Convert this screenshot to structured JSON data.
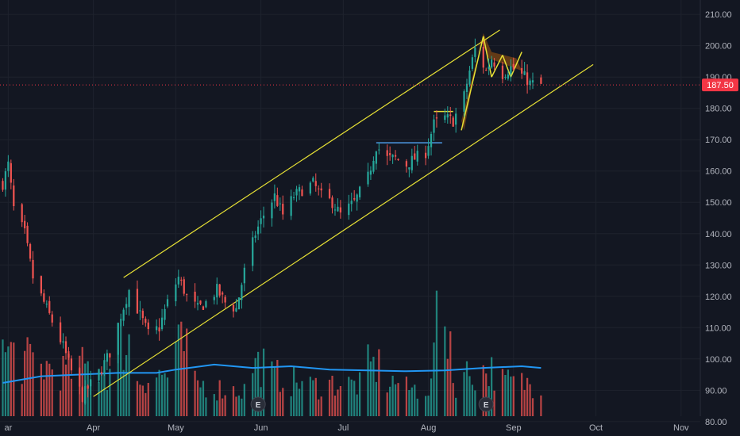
{
  "chart_data": {
    "type": "candlestick",
    "colors": {
      "background": "#131722",
      "up": "#26a69a",
      "down": "#ef5350",
      "volume_ma": "#2196f3",
      "channel": "#e6e035",
      "horizontal_line": "#4d9ae6",
      "pattern_fill": "#f57c00",
      "grid": "#1e222d",
      "price_line": "#f23645"
    },
    "y_ticks": [
      "210.00",
      "200.00",
      "190.00",
      "180.00",
      "170.00",
      "160.00",
      "150.00",
      "140.00",
      "130.00",
      "120.00",
      "110.00",
      "100.00",
      "90.00",
      "80.00"
    ],
    "y_tick_values": [
      210,
      200,
      190,
      180,
      170,
      160,
      150,
      140,
      130,
      120,
      110,
      100,
      90,
      80
    ],
    "ylim": [
      75.4,
      214.6
    ],
    "x_ticks": [
      "ar",
      "Apr",
      "May",
      "Jun",
      "Jul",
      "Aug",
      "Sep",
      "Oct",
      "Nov"
    ],
    "x_tick_dates": [
      "2023-03-01",
      "2023-04-01",
      "2023-05-01",
      "2023-06-01",
      "2023-07-01",
      "2023-08-01",
      "2023-09-01",
      "2023-10-01",
      "2023-11-01"
    ],
    "xlim": [
      "2023-02-26",
      "2023-11-08"
    ],
    "current_price": {
      "label": "187.50",
      "value": 187.5
    },
    "earnings_markers": [
      {
        "label": "E",
        "date": "2023-05-31"
      },
      {
        "label": "E",
        "date": "2023-08-22"
      }
    ],
    "candle_anchors": [
      [
        "2023-02-27",
        156
      ],
      [
        "2023-03-01",
        162
      ],
      [
        "2023-03-03",
        148
      ],
      [
        "2023-03-07",
        140
      ],
      [
        "2023-03-10",
        126
      ],
      [
        "2023-03-14",
        118
      ],
      [
        "2023-03-17",
        112
      ],
      [
        "2023-03-21",
        104
      ],
      [
        "2023-03-24",
        96
      ],
      [
        "2023-03-28",
        88
      ],
      [
        "2023-03-31",
        92
      ],
      [
        "2023-04-04",
        97
      ],
      [
        "2023-04-07",
        102
      ],
      [
        "2023-04-11",
        114
      ],
      [
        "2023-04-14",
        122
      ],
      [
        "2023-04-18",
        114
      ],
      [
        "2023-04-21",
        108
      ],
      [
        "2023-04-25",
        110
      ],
      [
        "2023-04-28",
        118
      ],
      [
        "2023-05-02",
        126
      ],
      [
        "2023-05-05",
        120
      ],
      [
        "2023-05-09",
        116
      ],
      [
        "2023-05-12",
        118
      ],
      [
        "2023-05-16",
        122
      ],
      [
        "2023-05-19",
        118
      ],
      [
        "2023-05-23",
        116
      ],
      [
        "2023-05-26",
        128
      ],
      [
        "2023-05-30",
        140
      ],
      [
        "2023-06-02",
        146
      ],
      [
        "2023-06-06",
        152
      ],
      [
        "2023-06-09",
        146
      ],
      [
        "2023-06-13",
        152
      ],
      [
        "2023-06-16",
        154
      ],
      [
        "2023-06-20",
        156
      ],
      [
        "2023-06-23",
        152
      ],
      [
        "2023-06-27",
        150
      ],
      [
        "2023-06-30",
        146
      ],
      [
        "2023-07-05",
        150
      ],
      [
        "2023-07-10",
        158
      ],
      [
        "2023-07-13",
        168
      ],
      [
        "2023-07-17",
        164
      ],
      [
        "2023-07-20",
        164
      ],
      [
        "2023-07-24",
        162
      ],
      [
        "2023-07-27",
        164
      ],
      [
        "2023-07-31",
        166
      ],
      [
        "2023-08-03",
        175
      ],
      [
        "2023-08-07",
        177
      ],
      [
        "2023-08-10",
        176
      ],
      [
        "2023-08-14",
        184
      ],
      [
        "2023-08-16",
        192
      ],
      [
        "2023-08-18",
        199
      ],
      [
        "2023-08-22",
        192
      ],
      [
        "2023-08-24",
        196
      ],
      [
        "2023-08-28",
        191
      ],
      [
        "2023-08-31",
        193
      ],
      [
        "2023-09-05",
        190
      ],
      [
        "2023-09-07",
        188
      ],
      [
        "2023-09-11",
        187.5
      ]
    ],
    "volume_bars": [
      [
        "2023-02-27",
        92
      ],
      [
        "2023-03-06",
        80
      ],
      [
        "2023-03-13",
        72
      ],
      [
        "2023-03-20",
        66
      ],
      [
        "2023-03-27",
        72
      ],
      [
        "2023-04-03",
        65
      ],
      [
        "2023-04-10",
        108
      ],
      [
        "2023-04-17",
        55
      ],
      [
        "2023-04-24",
        60
      ],
      [
        "2023-05-01",
        98
      ],
      [
        "2023-05-08",
        46
      ],
      [
        "2023-05-15",
        40
      ],
      [
        "2023-05-22",
        38
      ],
      [
        "2023-05-29",
        76
      ],
      [
        "2023-06-05",
        58
      ],
      [
        "2023-06-12",
        50
      ],
      [
        "2023-06-19",
        44
      ],
      [
        "2023-06-26",
        48
      ],
      [
        "2023-07-03",
        46
      ],
      [
        "2023-07-10",
        72
      ],
      [
        "2023-07-17",
        50
      ],
      [
        "2023-07-24",
        40
      ],
      [
        "2023-07-31",
        42
      ],
      [
        "2023-08-03",
        126
      ],
      [
        "2023-08-10",
        48
      ],
      [
        "2023-08-14",
        62
      ],
      [
        "2023-08-21",
        66
      ],
      [
        "2023-08-28",
        50
      ],
      [
        "2023-09-04",
        48
      ],
      [
        "2023-09-11",
        46
      ]
    ],
    "volume_ma": [
      [
        "2023-02-27",
        40
      ],
      [
        "2023-03-13",
        48
      ],
      [
        "2023-03-27",
        50
      ],
      [
        "2023-04-10",
        52
      ],
      [
        "2023-04-24",
        52
      ],
      [
        "2023-05-01",
        56
      ],
      [
        "2023-05-15",
        62
      ],
      [
        "2023-05-29",
        58
      ],
      [
        "2023-06-12",
        60
      ],
      [
        "2023-06-26",
        56
      ],
      [
        "2023-07-10",
        55
      ],
      [
        "2023-07-24",
        54
      ],
      [
        "2023-08-07",
        55
      ],
      [
        "2023-08-21",
        58
      ],
      [
        "2023-09-04",
        60
      ],
      [
        "2023-09-11",
        58
      ]
    ],
    "drawings": {
      "channel_upper": [
        [
          "2023-04-12",
          126
        ],
        [
          "2023-08-27",
          205
        ]
      ],
      "channel_lower": [
        [
          "2023-04-01",
          88
        ],
        [
          "2023-09-30",
          194
        ]
      ],
      "horizontal_lines": [
        {
          "start": [
            "2023-07-13",
            169
          ],
          "end": [
            "2023-08-06",
            169
          ]
        },
        {
          "start": [
            "2023-08-03",
            179
          ],
          "end": [
            "2023-08-10",
            179
          ]
        }
      ],
      "wedge_fill": [
        [
          "2023-08-14",
          173
        ],
        [
          "2023-08-20",
          202
        ],
        [
          "2023-08-23",
          196
        ],
        [
          "2023-09-04",
          192
        ],
        [
          "2023-09-02",
          196
        ],
        [
          "2023-08-24",
          198
        ],
        [
          "2023-08-21",
          204
        ],
        [
          "2023-08-13",
          176
        ]
      ],
      "wedge_lines": [
        [
          [
            "2023-08-13",
            173
          ],
          [
            "2023-08-21",
            203
          ]
        ],
        [
          [
            "2023-08-21",
            203
          ],
          [
            "2023-08-24",
            190
          ]
        ],
        [
          [
            "2023-08-24",
            190
          ],
          [
            "2023-08-28",
            197
          ]
        ],
        [
          [
            "2023-08-28",
            197
          ],
          [
            "2023-08-31",
            190
          ]
        ],
        [
          [
            "2023-08-31",
            190
          ],
          [
            "2023-09-04",
            198
          ]
        ]
      ]
    }
  }
}
